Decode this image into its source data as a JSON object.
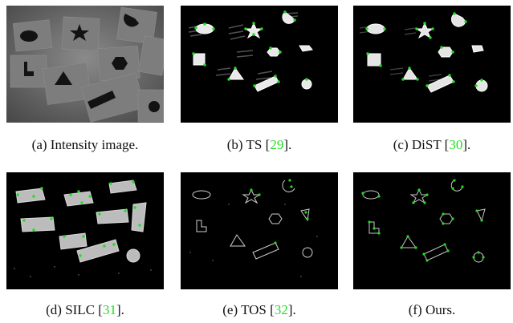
{
  "figure": {
    "panels": [
      {
        "label": "(a)",
        "title": "Intensity image.",
        "ref": null
      },
      {
        "label": "(b)",
        "title": "TS",
        "ref": "29"
      },
      {
        "label": "(c)",
        "title": "DiST",
        "ref": "30"
      },
      {
        "label": "(d)",
        "title": "SILC",
        "ref": "31"
      },
      {
        "label": "(e)",
        "title": "TOS",
        "ref": "32"
      },
      {
        "label": "(f)",
        "title": "Ours.",
        "ref": null
      }
    ],
    "colors": {
      "background": "#000000",
      "corner_marker": "#22dd22",
      "citation": "#22dd22",
      "intensity_bg": "#6e6e6e"
    }
  }
}
